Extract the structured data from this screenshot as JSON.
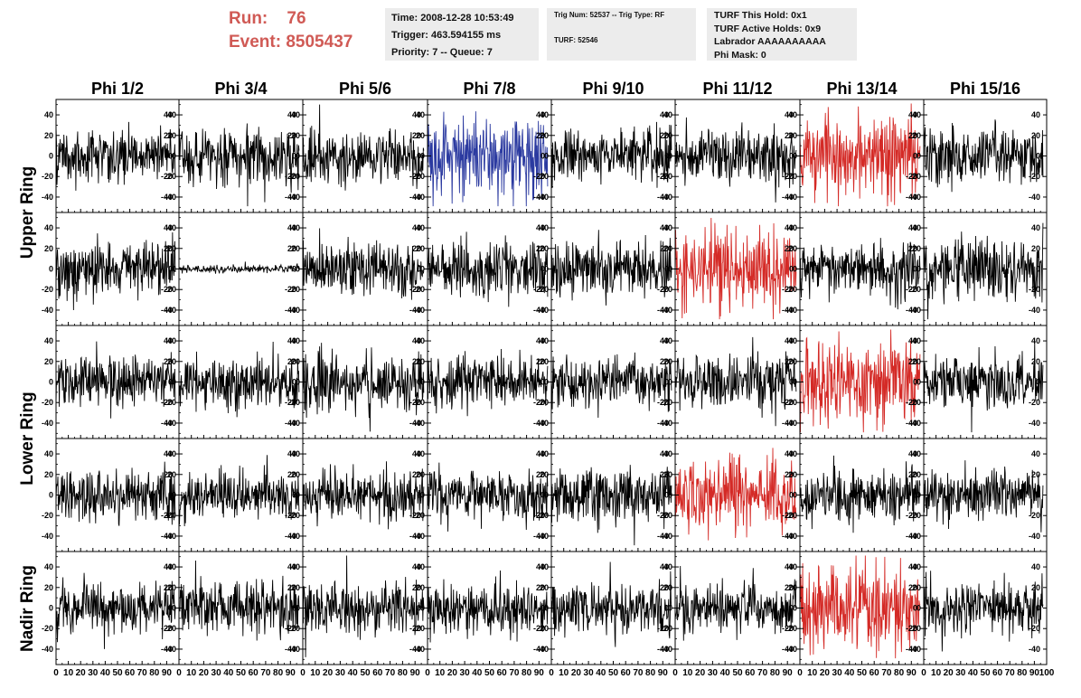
{
  "header": {
    "run_label": "Run:",
    "run_value": "76",
    "event_label": "Event:",
    "event_value": "8505437"
  },
  "info_box_1": {
    "time": "Time: 2008-12-28 10:53:49",
    "trigger": "Trigger: 463.594155 ms",
    "priority": "Priority: 7 -- Queue: 7"
  },
  "info_box_2": {
    "trig": "Trig Num: 52537 -- Trig Type: RF",
    "turf": "TURF: 52546"
  },
  "info_box_3": {
    "this_hold": "TURF This Hold: 0x1",
    "active_holds": "TURF Active Holds: 0x9",
    "labrador": "Labrador AAAAAAAAAA",
    "phi_mask": "Phi Mask: 0"
  },
  "colors": {
    "normal": "#000000",
    "blue": "#2b3aa0",
    "red": "#d42a26",
    "header_text": "#d05a55",
    "box_bg": "#ececec"
  },
  "chart_data": {
    "type": "line",
    "columns": [
      "Phi 1/2",
      "Phi 3/4",
      "Phi 5/6",
      "Phi 7/8",
      "Phi 9/10",
      "Phi 11/12",
      "Phi 13/14",
      "Phi 15/16"
    ],
    "rows": [
      "Upper Ring",
      "Upper Ring",
      "Lower Ring",
      "Lower Ring",
      "Nadir Ring"
    ],
    "row_labels": [
      {
        "text": "Upper Ring",
        "spans_rows": [
          0,
          1
        ]
      },
      {
        "text": "Lower Ring",
        "spans_rows": [
          2,
          3
        ]
      },
      {
        "text": "Nadir Ring",
        "spans_rows": [
          4
        ]
      }
    ],
    "xlim": [
      0,
      100
    ],
    "ylim": [
      -55,
      55
    ],
    "x_ticks": [
      0,
      10,
      20,
      30,
      40,
      50,
      60,
      70,
      80,
      90,
      100
    ],
    "y_ticks": [
      -40,
      -20,
      0,
      20,
      40
    ],
    "samples_per_trace": 260,
    "trace_x_end": 97,
    "panel_style": [
      [
        "black",
        "black",
        "black",
        "blue",
        "black",
        "black",
        "red",
        "black"
      ],
      [
        "black",
        "black",
        "black",
        "black",
        "black",
        "red",
        "black",
        "black"
      ],
      [
        "black",
        "black",
        "black",
        "black",
        "black",
        "black",
        "red",
        "black"
      ],
      [
        "black",
        "black",
        "black",
        "black",
        "black",
        "red",
        "black",
        "black"
      ],
      [
        "black",
        "black",
        "black",
        "black",
        "black",
        "black",
        "red",
        "black"
      ]
    ],
    "panel_amplitude": [
      [
        20,
        22,
        21,
        30,
        21,
        20,
        32,
        22
      ],
      [
        22,
        3,
        20,
        20,
        21,
        32,
        20,
        22
      ],
      [
        20,
        20,
        22,
        20,
        18,
        21,
        33,
        20
      ],
      [
        21,
        18,
        20,
        20,
        22,
        28,
        20,
        20
      ],
      [
        20,
        20,
        20,
        19,
        20,
        20,
        33,
        20
      ]
    ]
  }
}
